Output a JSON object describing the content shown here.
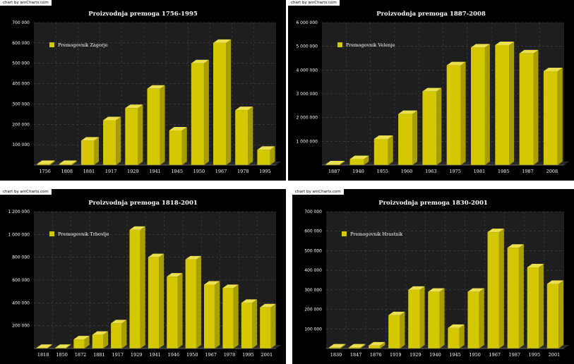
{
  "credit_text": "chart by amCharts.com",
  "colors": {
    "background": "#000000",
    "plot": "#1e1e1e",
    "grid": "#4a4a4a",
    "bar_front": "#d4c800",
    "bar_side": "#a89e00",
    "bar_top": "#ece050",
    "text": "#ffffff"
  },
  "chart_data": [
    {
      "type": "bar",
      "title": "Proizvodnja premoga 1756-1995",
      "series": [
        {
          "name": "Premogovnik Zagorje",
          "values": [
            5000,
            5000,
            120000,
            220000,
            280000,
            375000,
            170000,
            500000,
            600000,
            270000,
            75000
          ]
        }
      ],
      "categories": [
        "1756",
        "1808",
        "1881",
        "1917",
        "1929",
        "1941",
        "1945",
        "1950",
        "1967",
        "1978",
        "1995"
      ],
      "ylim": [
        0,
        700000
      ],
      "yticks": [
        100000,
        200000,
        300000,
        400000,
        500000,
        600000,
        700000
      ],
      "ytick_labels": [
        "100 000",
        "200 000",
        "300 000",
        "400 000",
        "500 000",
        "600 000",
        "700 000"
      ],
      "grid": true,
      "legend_position": "top-left"
    },
    {
      "type": "bar",
      "title": "Proizvodnja premoga 1887-2008",
      "series": [
        {
          "name": "Premogovnik Velenje",
          "values": [
            30000,
            250000,
            1100000,
            2150000,
            3100000,
            4200000,
            4950000,
            5050000,
            4700000,
            3950000
          ]
        }
      ],
      "categories": [
        "1887",
        "1940",
        "1955",
        "1960",
        "1963",
        "1975",
        "1981",
        "1985",
        "1987",
        "2008"
      ],
      "ylim": [
        0,
        6000000
      ],
      "yticks": [
        1000000,
        2000000,
        3000000,
        4000000,
        5000000,
        6000000
      ],
      "ytick_labels": [
        "1 000 000",
        "2 000 000",
        "3 000 000",
        "4 000 000",
        "5 000 000",
        "6 000 000"
      ],
      "grid": true,
      "legend_position": "top-left"
    },
    {
      "type": "bar",
      "title": "Proizvodnja premoga 1818-2001",
      "series": [
        {
          "name": "Premogovnik Trbovlje",
          "values": [
            5000,
            5000,
            80000,
            120000,
            220000,
            1040000,
            800000,
            630000,
            780000,
            560000,
            530000,
            400000,
            360000
          ]
        }
      ],
      "categories": [
        "1818",
        "1850",
        "1872",
        "1881",
        "1917",
        "1929",
        "1941",
        "1946",
        "1950",
        "1967",
        "1978",
        "1995",
        "2001"
      ],
      "ylim": [
        0,
        1200000
      ],
      "yticks": [
        200000,
        400000,
        600000,
        800000,
        1000000,
        1200000
      ],
      "ytick_labels": [
        "200 000",
        "400 000",
        "600 000",
        "800 000",
        "1 000 000",
        "1 200 000"
      ],
      "grid": true,
      "legend_position": "top-left"
    },
    {
      "type": "bar",
      "title": "Proizvodnja premoga 1830-2001",
      "series": [
        {
          "name": "Premogovnik Hrastnik",
          "values": [
            5000,
            5000,
            15000,
            170000,
            300000,
            290000,
            105000,
            290000,
            595000,
            515000,
            415000,
            330000
          ]
        }
      ],
      "categories": [
        "1830",
        "1847",
        "1876",
        "1919",
        "1929",
        "1940",
        "1945",
        "1950",
        "1967",
        "1987",
        "1995",
        "2001"
      ],
      "ylim": [
        0,
        700000
      ],
      "yticks": [
        100000,
        200000,
        300000,
        400000,
        500000,
        600000,
        700000
      ],
      "ytick_labels": [
        "100 000",
        "200 000",
        "300 000",
        "400 000",
        "500 000",
        "600 000",
        "700 000"
      ],
      "grid": true,
      "legend_position": "top-left"
    }
  ]
}
